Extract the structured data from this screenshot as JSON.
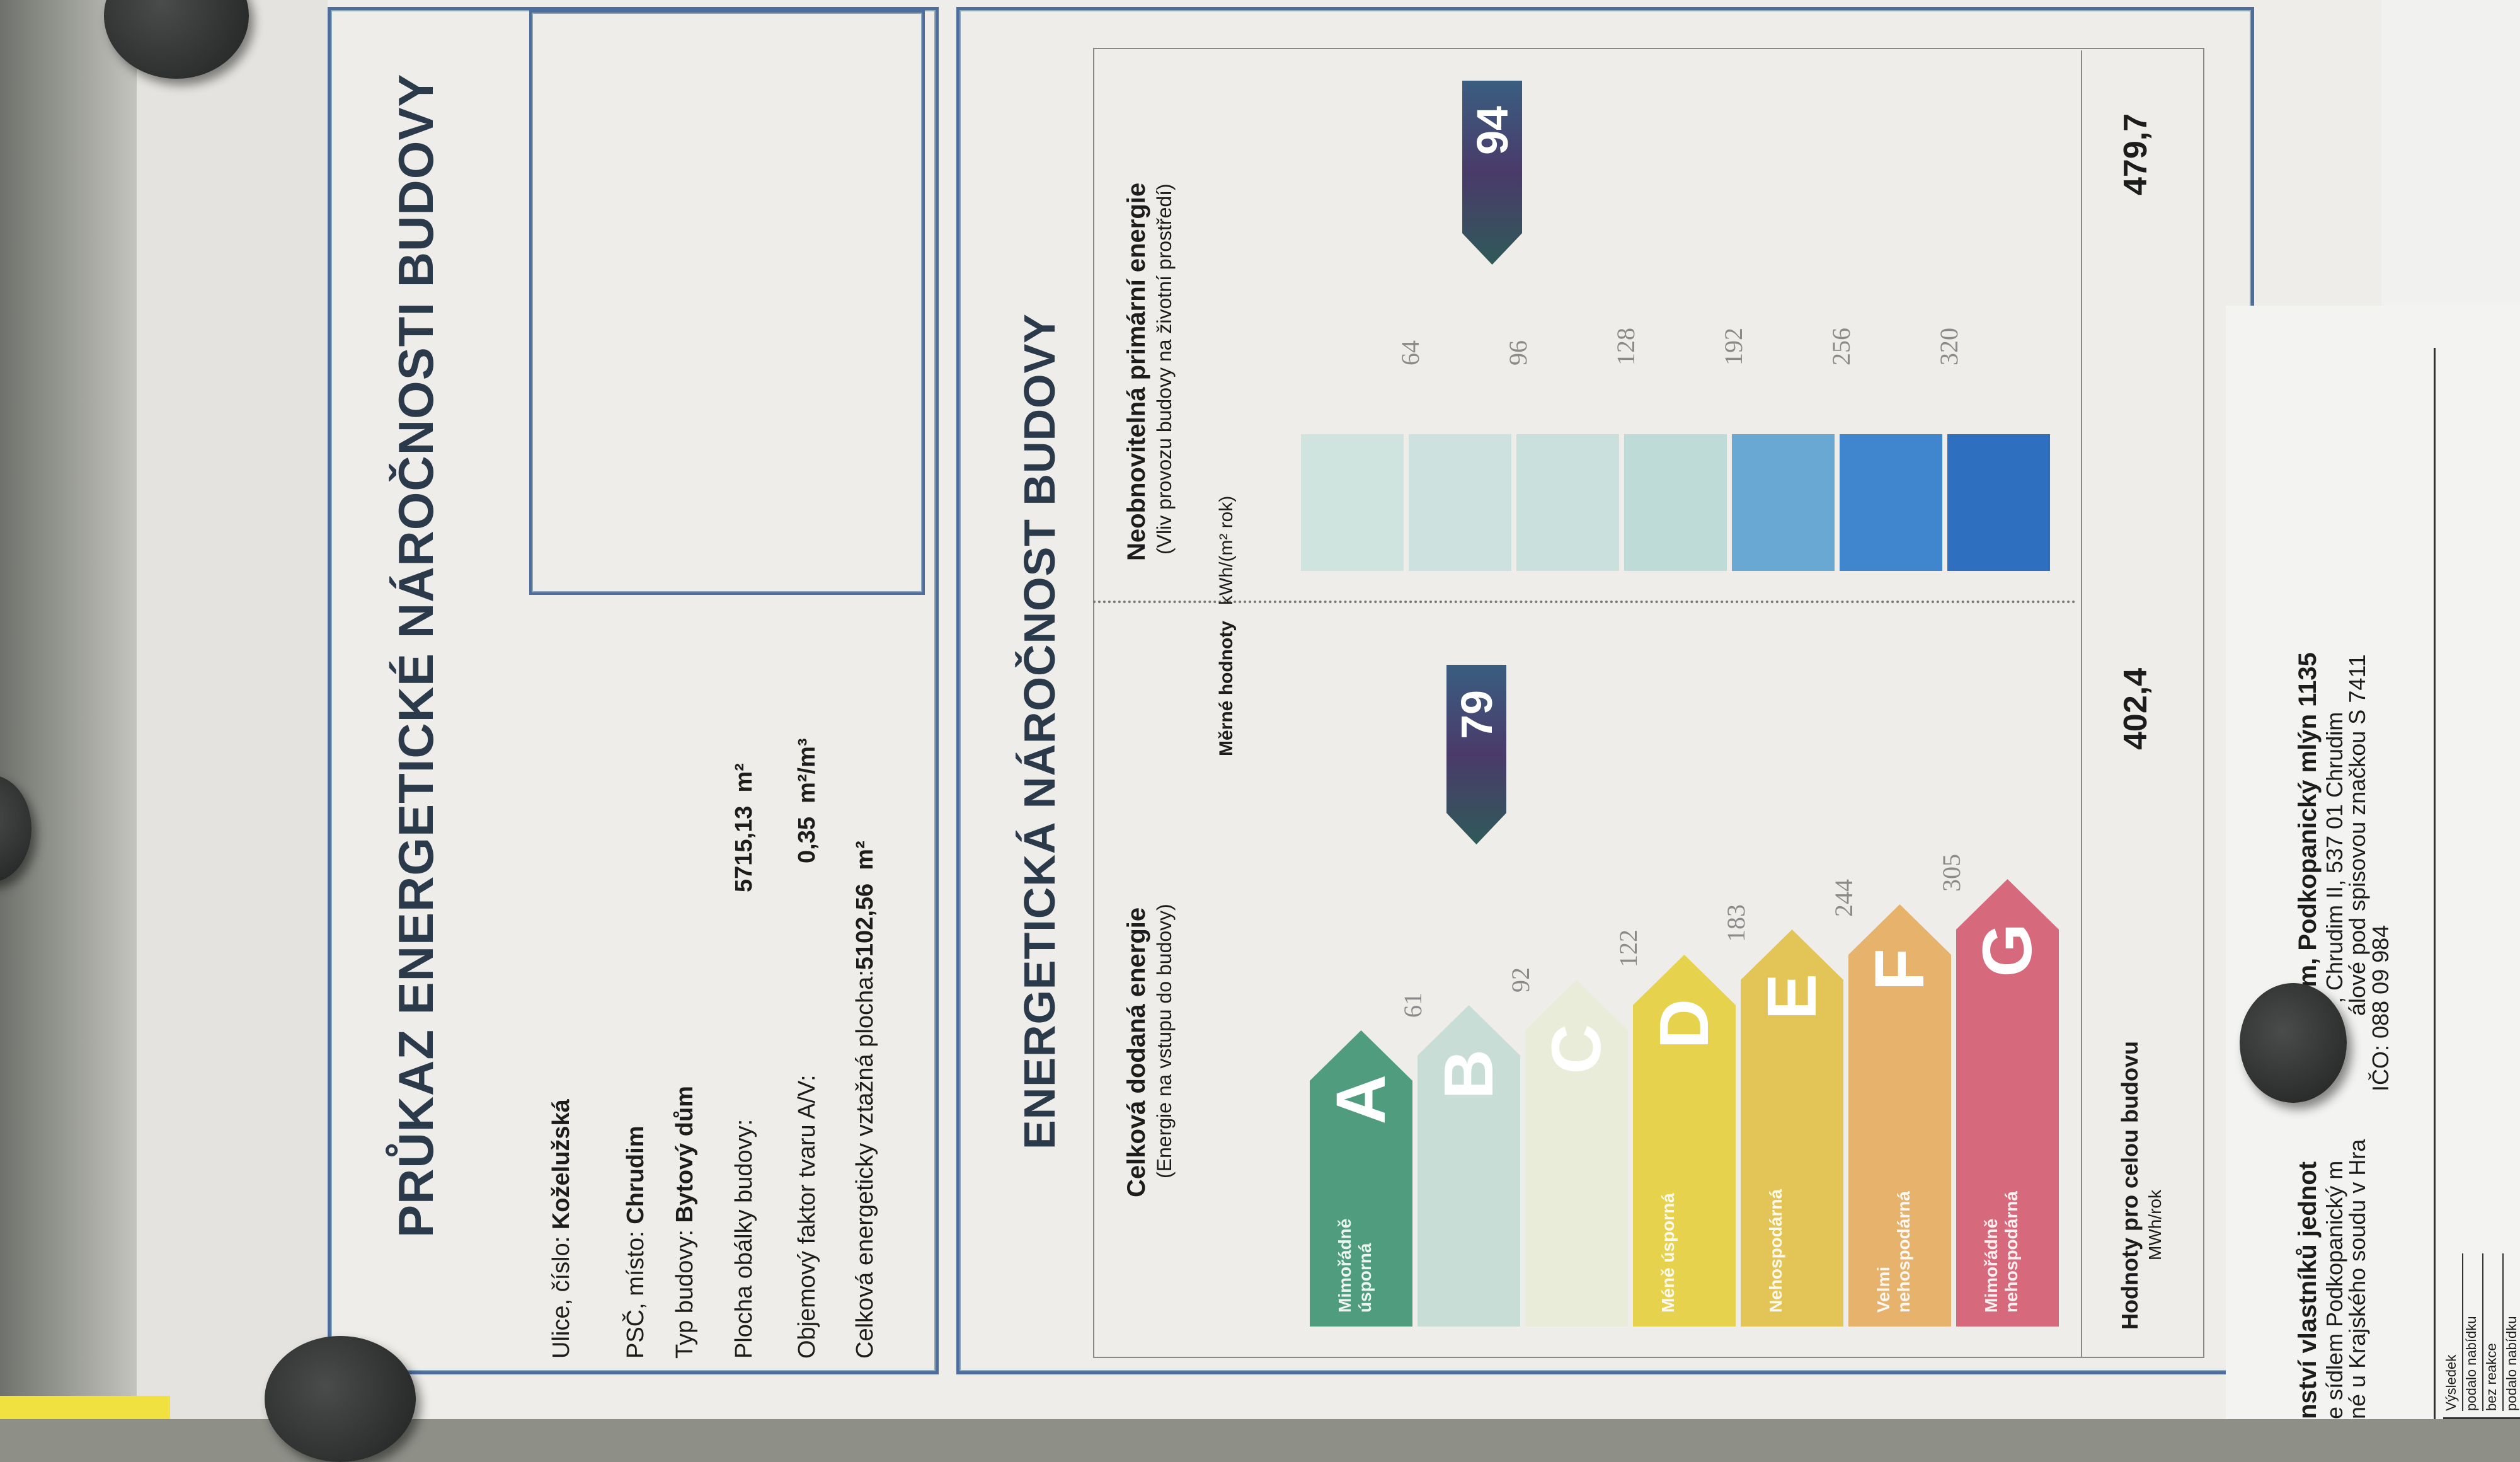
{
  "certificate": {
    "title": "PRŮKAZ ENERGETICKÉ NÁROČNOSTI BUDOVY",
    "info": {
      "street_label": "Ulice, číslo:",
      "street_value": "Koželužská",
      "city_label": "PSČ, místo:",
      "city_value": "Chrudim",
      "type_label": "Typ budovy:",
      "type_value": "Bytový dům",
      "envelope_label": "Plocha obálky budovy:",
      "envelope_value": "5715,13",
      "envelope_unit": "m²",
      "shape_label": "Objemový faktor tvaru A/V:",
      "shape_value": "0,35",
      "shape_unit": "m²/m³",
      "area_label": "Celková energeticky vztažná plocha:",
      "area_value": "5102,56",
      "area_unit": "m²"
    },
    "section_title": "ENERGETICKÁ NÁROČNOST BUDOVY",
    "left_column": {
      "heading": "Celková dodaná energie",
      "subheading": "(Energie na vstupu do budovy)",
      "classes": [
        {
          "letter": "A",
          "label": "Mimořádně úsporná",
          "limit": "61",
          "color": "#4f9c7e"
        },
        {
          "letter": "B",
          "label": "",
          "limit": "92",
          "color": "#c8ddd6"
        },
        {
          "letter": "C",
          "label": "",
          "limit": "122",
          "color": "#e9ecd9"
        },
        {
          "letter": "D",
          "label": "Méně úsporná",
          "limit": "183",
          "color": "#e6d24c"
        },
        {
          "letter": "E",
          "label": "Nehospodárná",
          "limit": "244",
          "color": "#e3c457"
        },
        {
          "letter": "F",
          "label": "Velmi nehospodárná",
          "limit": "305",
          "color": "#e6b26c"
        },
        {
          "letter": "G",
          "label": "Mimořádně nehospodárná",
          "limit": "",
          "color": "#d66a7c"
        }
      ],
      "marker_value": "79",
      "total_value": "402,4"
    },
    "right_column": {
      "heading": "Neobnovitelná primární energie",
      "subheading": "(Vliv provozu budovy na životní prostředí)",
      "limits": [
        "64",
        "96",
        "128",
        "192",
        "256",
        "320"
      ],
      "bar_colors": [
        "#cfe3df",
        "#cde2de",
        "#c9e0dc",
        "#bfdbd8",
        "#6aa8d4",
        "#3f86cf",
        "#2f6fc0"
      ],
      "marker_value": "94",
      "total_value": "479,7"
    },
    "specific_values_label": "Měrné hodnoty",
    "specific_values_unit": "kWh/(m² rok)",
    "totals_label": "Hodnoty pro celou budovu",
    "totals_unit": "MWh/rok"
  },
  "notice": {
    "line1_a": "nství vlastníků jednot",
    "line1_b": "dim, Podkopanický mlýn 1135",
    "line2_a": "e sídlem Podkopanický m",
    "line2_b": ", Chrudim II, 537 01 Chrudim",
    "line3_a": "né u Krajského soudu v Hra",
    "line3_b": "álové pod spisovou značkou S 7411",
    "line4": "IČO: 088 09 984",
    "table": [
      "Výsledek",
      "podalo nabídku",
      "bez reakce",
      "podalo nabídku"
    ]
  }
}
